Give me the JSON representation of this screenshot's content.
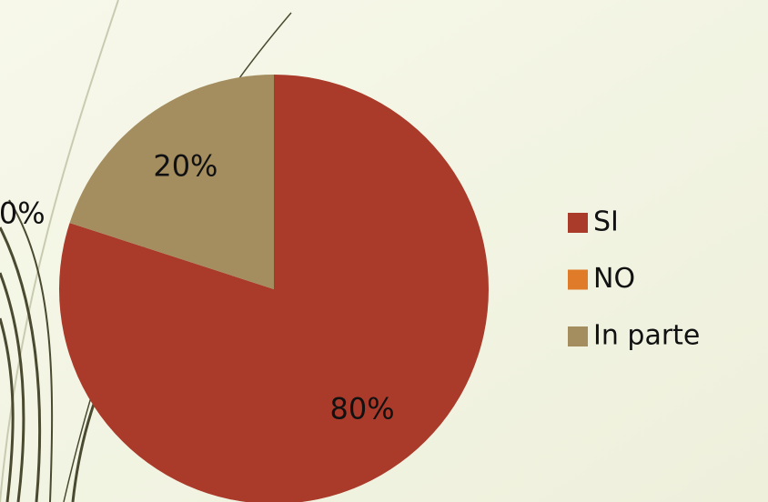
{
  "chart_data": {
    "type": "pie",
    "categories": [
      "SI",
      "NO",
      "In parte"
    ],
    "values": [
      80,
      0,
      20
    ],
    "value_labels": [
      "80%",
      "0%",
      "20%"
    ],
    "colors": [
      "#aa3b2b",
      "#e07b2a",
      "#a48e60"
    ],
    "legend": "right"
  }
}
